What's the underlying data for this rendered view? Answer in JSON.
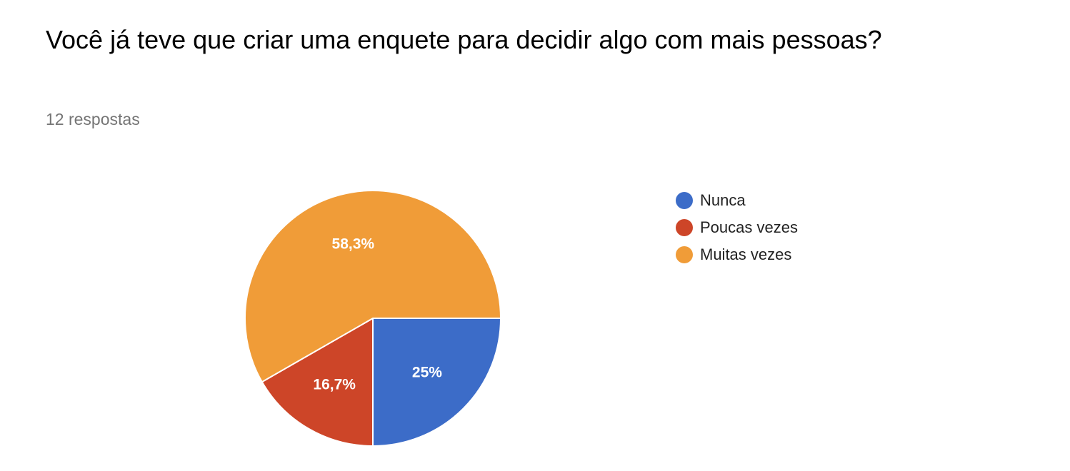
{
  "question": {
    "title": "Você já teve que criar uma enquete para decidir algo com mais pessoas?",
    "responses": "12 respostas"
  },
  "chart_data": {
    "type": "pie",
    "categories": [
      "Nunca",
      "Poucas vezes",
      "Muitas vezes"
    ],
    "values": [
      25,
      16.7,
      58.3
    ],
    "labels": [
      "25%",
      "16,7%",
      "58,3%"
    ],
    "colors": [
      "#3c6cc8",
      "#cd4528",
      "#f09c38"
    ],
    "legend_position": "right",
    "start": "3 o'clock",
    "direction": "clockwise"
  }
}
